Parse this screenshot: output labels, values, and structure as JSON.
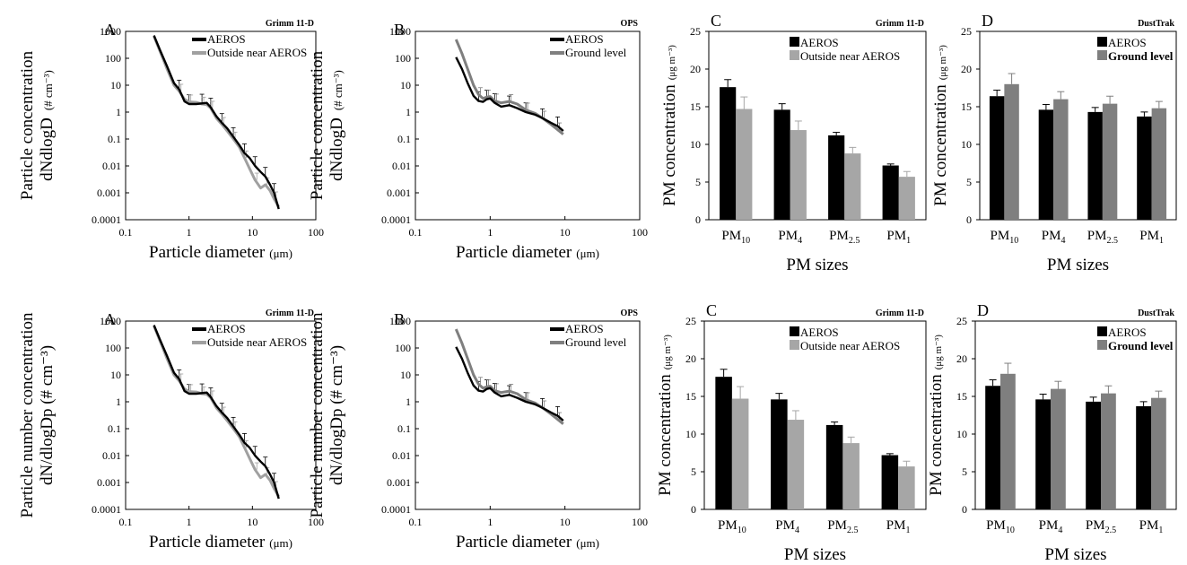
{
  "labels": {
    "log_x_ticks": [
      "0.1",
      "1",
      "10",
      "100"
    ],
    "log_y_ticks": [
      "0.0001",
      "0.001",
      "0.01",
      "0.1",
      "1",
      "10",
      "100",
      "1000"
    ],
    "bar_y_ticks": [
      "0",
      "5",
      "10",
      "15",
      "20",
      "25"
    ]
  },
  "chart_data": [
    {
      "type": "line",
      "panel": "A",
      "instrument": "Grimm 11-D",
      "xlabel": "Particle diameter",
      "xlabel_unit": "(μm)",
      "ylabel_lines": [
        "Particle concentration",
        "dNdlogD"
      ],
      "ylabel_unit": "(# cm⁻³)",
      "xscale": "log",
      "yscale": "log",
      "xlim": [
        0.1,
        100
      ],
      "ylim": [
        0.0001,
        1000
      ],
      "legend_position": "top-right",
      "series": [
        {
          "name": "AEROS",
          "color": "#000000",
          "x": [
            0.28,
            0.35,
            0.45,
            0.58,
            0.7,
            0.85,
            1.0,
            1.3,
            1.6,
            1.9,
            2.2,
            2.7,
            3.3,
            4.0,
            5.0,
            6.2,
            7.5,
            9.0,
            11.0,
            13.5,
            16.0,
            19.0,
            22.0,
            26.0
          ],
          "y": [
            700,
            200,
            50,
            12,
            7,
            2.5,
            2,
            2,
            2.1,
            2.2,
            1.5,
            0.7,
            0.4,
            0.25,
            0.12,
            0.06,
            0.03,
            0.02,
            0.01,
            0.006,
            0.004,
            0.002,
            0.001,
            0.00025
          ]
        },
        {
          "name": "Outside near AEROS",
          "color": "#a0a0a0",
          "x": [
            0.28,
            0.35,
            0.45,
            0.58,
            0.7,
            0.85,
            1.0,
            1.3,
            1.6,
            1.9,
            2.2,
            2.7,
            3.3,
            4.0,
            5.0,
            6.2,
            7.5,
            9.0,
            11.0,
            13.5,
            16.0,
            19.0,
            22.0,
            26.0
          ],
          "y": [
            650,
            180,
            40,
            10,
            6,
            3,
            2.4,
            2.3,
            2.0,
            1.9,
            1.4,
            0.6,
            0.35,
            0.2,
            0.1,
            0.05,
            0.02,
            0.008,
            0.003,
            0.0015,
            0.002,
            0.0012,
            0.0006,
            0.0003
          ]
        }
      ]
    },
    {
      "type": "line",
      "panel": "B",
      "instrument": "OPS",
      "xlabel": "Particle diameter",
      "xlabel_unit": "(μm)",
      "ylabel_lines": [
        "Particle concentration",
        "dNdlogD"
      ],
      "ylabel_unit": "(# cm⁻³)",
      "xscale": "log",
      "yscale": "log",
      "xlim": [
        0.1,
        100
      ],
      "ylim": [
        0.0001,
        1000
      ],
      "legend_position": "top-right",
      "series": [
        {
          "name": "AEROS",
          "color": "#000000",
          "x": [
            0.35,
            0.42,
            0.5,
            0.6,
            0.7,
            0.8,
            0.9,
            1.0,
            1.15,
            1.4,
            1.8,
            2.3,
            3.0,
            4.0,
            5.0,
            6.5,
            8.0,
            9.5
          ],
          "y": [
            110,
            40,
            12,
            4,
            2.6,
            2.4,
            3,
            3.2,
            2.2,
            1.6,
            1.8,
            1.4,
            1.0,
            0.8,
            0.6,
            0.4,
            0.3,
            0.2
          ]
        },
        {
          "name": "Ground level",
          "color": "#7f7f7f",
          "x": [
            0.35,
            0.42,
            0.5,
            0.6,
            0.7,
            0.8,
            0.9,
            1.0,
            1.15,
            1.4,
            1.8,
            2.3,
            3.0,
            4.0,
            5.0,
            6.5,
            8.0,
            9.5
          ],
          "y": [
            500,
            150,
            40,
            10,
            4.5,
            3.2,
            3.6,
            3.8,
            2.6,
            2.2,
            2.5,
            2.0,
            1.2,
            0.9,
            0.6,
            0.35,
            0.22,
            0.15
          ]
        }
      ]
    },
    {
      "type": "bar",
      "panel": "C",
      "instrument": "Grimm 11-D",
      "xlabel": "PM sizes",
      "ylabel": "PM concentration",
      "ylabel_unit": "(μg m⁻³)",
      "ylim": [
        0,
        25
      ],
      "categories": [
        {
          "base": "PM",
          "sub": "10"
        },
        {
          "base": "PM",
          "sub": "4"
        },
        {
          "base": "PM",
          "sub": "2.5"
        },
        {
          "base": "PM",
          "sub": "1"
        }
      ],
      "legend_position": "top-right",
      "series": [
        {
          "name": "AEROS",
          "color": "#000000",
          "values": [
            17.6,
            14.6,
            11.2,
            7.2
          ],
          "errors": [
            1.0,
            0.8,
            0.4,
            0.2
          ]
        },
        {
          "name": "Outside near AEROS",
          "color": "#a6a6a6",
          "values": [
            14.7,
            11.9,
            8.8,
            5.7
          ],
          "errors": [
            1.6,
            1.2,
            0.8,
            0.7
          ]
        }
      ]
    },
    {
      "type": "bar",
      "panel": "D",
      "instrument": "DustTrak",
      "xlabel": "PM sizes",
      "ylabel": "PM concentration",
      "ylabel_unit": "(μg m⁻³)",
      "ylim": [
        0,
        25
      ],
      "categories": [
        {
          "base": "PM",
          "sub": "10"
        },
        {
          "base": "PM",
          "sub": "4"
        },
        {
          "base": "PM",
          "sub": "2.5"
        },
        {
          "base": "PM",
          "sub": "1"
        }
      ],
      "legend_position": "top-right",
      "series": [
        {
          "name": "AEROS",
          "color": "#000000",
          "values": [
            16.4,
            14.6,
            14.3,
            13.7
          ],
          "errors": [
            0.8,
            0.7,
            0.6,
            0.6
          ]
        },
        {
          "name": "Ground level",
          "color": "#7f7f7f",
          "values": [
            18.0,
            16.0,
            15.4,
            14.8
          ],
          "errors": [
            1.4,
            1.0,
            1.0,
            0.9
          ]
        }
      ]
    },
    {
      "type": "line",
      "panel": "A",
      "instrument": "Grimm 11-D",
      "xlabel": "Particle diameter",
      "xlabel_unit": "(μm)",
      "ylabel_lines": [
        "Particle number concentration",
        "dN/dlogDp (# cm⁻³)"
      ],
      "ylabel_unit": "",
      "xscale": "log",
      "yscale": "log",
      "xlim": [
        0.1,
        100
      ],
      "ylim": [
        0.0001,
        1000
      ],
      "legend_position": "top-right",
      "series": [
        {
          "name": "AEROS",
          "color": "#000000",
          "x": [
            0.28,
            0.35,
            0.45,
            0.58,
            0.7,
            0.85,
            1.0,
            1.3,
            1.6,
            1.9,
            2.2,
            2.7,
            3.3,
            4.0,
            5.0,
            6.2,
            7.5,
            9.0,
            11.0,
            13.5,
            16.0,
            19.0,
            22.0,
            26.0
          ],
          "y": [
            700,
            200,
            50,
            12,
            7,
            2.5,
            2,
            2,
            2.1,
            2.2,
            1.5,
            0.7,
            0.4,
            0.25,
            0.12,
            0.06,
            0.03,
            0.02,
            0.01,
            0.006,
            0.004,
            0.002,
            0.001,
            0.00025
          ]
        },
        {
          "name": "Outside near AEROS",
          "color": "#a0a0a0",
          "x": [
            0.28,
            0.35,
            0.45,
            0.58,
            0.7,
            0.85,
            1.0,
            1.3,
            1.6,
            1.9,
            2.2,
            2.7,
            3.3,
            4.0,
            5.0,
            6.2,
            7.5,
            9.0,
            11.0,
            13.5,
            16.0,
            19.0,
            22.0,
            26.0
          ],
          "y": [
            650,
            180,
            40,
            10,
            6,
            3,
            2.4,
            2.3,
            2.0,
            1.9,
            1.4,
            0.6,
            0.35,
            0.2,
            0.1,
            0.05,
            0.02,
            0.008,
            0.003,
            0.0015,
            0.002,
            0.0012,
            0.0006,
            0.0003
          ]
        }
      ]
    },
    {
      "type": "line",
      "panel": "B",
      "instrument": "OPS",
      "xlabel": "Particle diameter",
      "xlabel_unit": "(μm)",
      "ylabel_lines": [
        "Particle number concentration",
        "dN/dlogDp (# cm⁻³)"
      ],
      "ylabel_unit": "",
      "xscale": "log",
      "yscale": "log",
      "xlim": [
        0.1,
        100
      ],
      "ylim": [
        0.0001,
        1000
      ],
      "legend_position": "top-right",
      "series": [
        {
          "name": "AEROS",
          "color": "#000000",
          "x": [
            0.35,
            0.42,
            0.5,
            0.6,
            0.7,
            0.8,
            0.9,
            1.0,
            1.15,
            1.4,
            1.8,
            2.3,
            3.0,
            4.0,
            5.0,
            6.5,
            8.0,
            9.5
          ],
          "y": [
            110,
            40,
            12,
            4,
            2.6,
            2.4,
            3,
            3.2,
            2.2,
            1.6,
            1.8,
            1.4,
            1.0,
            0.8,
            0.6,
            0.4,
            0.3,
            0.2
          ]
        },
        {
          "name": "Ground level",
          "color": "#7f7f7f",
          "x": [
            0.35,
            0.42,
            0.5,
            0.6,
            0.7,
            0.8,
            0.9,
            1.0,
            1.15,
            1.4,
            1.8,
            2.3,
            3.0,
            4.0,
            5.0,
            6.5,
            8.0,
            9.5
          ],
          "y": [
            500,
            150,
            40,
            10,
            4.5,
            3.2,
            3.6,
            3.8,
            2.6,
            2.2,
            2.5,
            2.0,
            1.2,
            0.9,
            0.6,
            0.35,
            0.22,
            0.15
          ]
        }
      ]
    },
    {
      "type": "bar",
      "panel": "C",
      "instrument": "Grimm 11-D",
      "xlabel": "PM sizes",
      "ylabel": "PM concentration",
      "ylabel_unit": "(μg m⁻³)",
      "ylim": [
        0,
        25
      ],
      "categories": [
        {
          "base": "PM",
          "sub": "10"
        },
        {
          "base": "PM",
          "sub": "4"
        },
        {
          "base": "PM",
          "sub": "2.5"
        },
        {
          "base": "PM",
          "sub": "1"
        }
      ],
      "legend_position": "top-right",
      "series": [
        {
          "name": "AEROS",
          "color": "#000000",
          "values": [
            17.6,
            14.6,
            11.2,
            7.2
          ],
          "errors": [
            1.0,
            0.8,
            0.4,
            0.2
          ]
        },
        {
          "name": "Outside near AEROS",
          "color": "#a6a6a6",
          "values": [
            14.7,
            11.9,
            8.8,
            5.7
          ],
          "errors": [
            1.6,
            1.2,
            0.8,
            0.7
          ]
        }
      ]
    },
    {
      "type": "bar",
      "panel": "D",
      "instrument": "DustTrak",
      "xlabel": "PM sizes",
      "ylabel": "PM concentration",
      "ylabel_unit": "(μg m⁻³)",
      "ylim": [
        0,
        25
      ],
      "categories": [
        {
          "base": "PM",
          "sub": "10"
        },
        {
          "base": "PM",
          "sub": "4"
        },
        {
          "base": "PM",
          "sub": "2.5"
        },
        {
          "base": "PM",
          "sub": "1"
        }
      ],
      "legend_position": "top-right",
      "series": [
        {
          "name": "AEROS",
          "color": "#000000",
          "values": [
            16.4,
            14.6,
            14.3,
            13.7
          ],
          "errors": [
            0.8,
            0.7,
            0.6,
            0.6
          ]
        },
        {
          "name": "Ground level",
          "color": "#7f7f7f",
          "values": [
            18.0,
            16.0,
            15.4,
            14.8
          ],
          "errors": [
            1.4,
            1.0,
            1.0,
            0.9
          ]
        }
      ]
    }
  ]
}
